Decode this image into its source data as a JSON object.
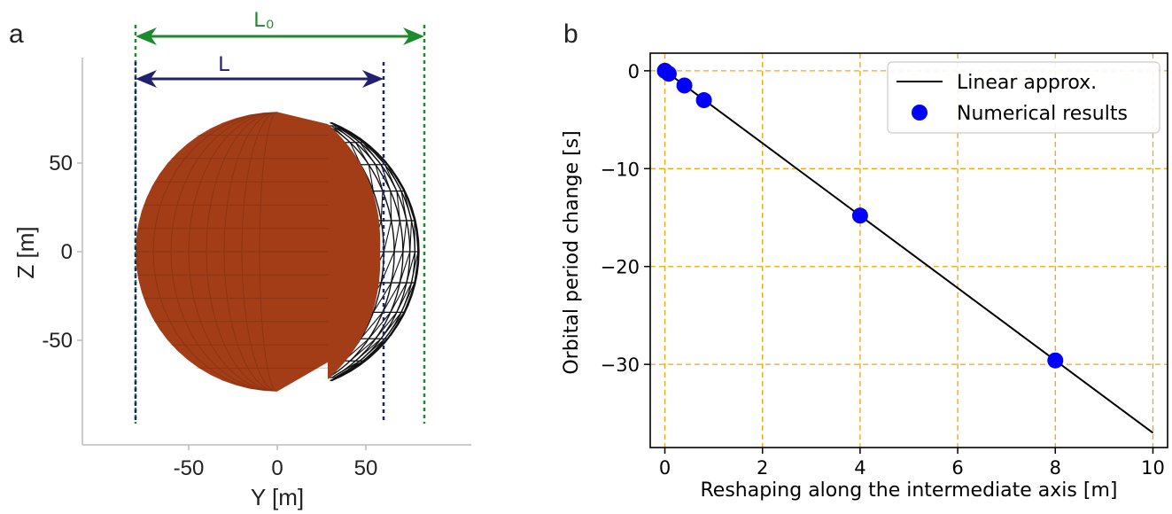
{
  "figure": {
    "colors": {
      "sphere_fill": "#a33d17",
      "wire": "#111111",
      "L0_arrow": "#1e8a2e",
      "L_arrow": "#23206e",
      "grid": "#f5a30f",
      "line": "#000000",
      "points": "#0000ff"
    }
  },
  "chart_data": [
    {
      "panel": "a",
      "type": "scatter",
      "xlabel": "Y [m]",
      "ylabel": "Z [m]",
      "xticks": [
        "-50",
        "0",
        "50"
      ],
      "yticks": [
        "50",
        "0",
        "-50"
      ],
      "xtick_values": [
        -50,
        0,
        50
      ],
      "ytick_values": [
        50,
        0,
        -50
      ],
      "xlim": [
        -88,
        88
      ],
      "ylim": [
        -88,
        88
      ],
      "annotations": {
        "L0": "L₀",
        "L": "L"
      },
      "body": {
        "sphere_radius": 80,
        "wireframe_right_edge": 80,
        "reshaped_right_edge": 58,
        "wireframe_cut_start": 29
      },
      "dims": {
        "L0": {
          "from": -80,
          "to": 83
        },
        "L": {
          "from": -80,
          "to": 60
        }
      }
    },
    {
      "panel": "b",
      "type": "line",
      "xlabel": "Reshaping along the intermediate axis [m]",
      "ylabel": "Orbital period change [s]",
      "xticks": [
        "0",
        "2",
        "4",
        "6",
        "8",
        "10"
      ],
      "yticks": [
        "0",
        "−10",
        "−20",
        "−30"
      ],
      "xtick_values": [
        0,
        2,
        4,
        6,
        8,
        10
      ],
      "ytick_values": [
        0,
        -10,
        -20,
        -30
      ],
      "xlim": [
        -0.3,
        10.3
      ],
      "ylim": [
        -38.5,
        1.8
      ],
      "grid": true,
      "legend_position": "top-right",
      "series": [
        {
          "name": "Linear approx.",
          "type": "line",
          "x": [
            0,
            10
          ],
          "y": [
            0,
            -37
          ]
        },
        {
          "name": "Numerical results",
          "type": "scatter",
          "x": [
            0,
            0.08,
            0.4,
            0.8,
            4,
            8
          ],
          "y": [
            0,
            -0.3,
            -1.5,
            -3.0,
            -14.8,
            -29.6
          ]
        }
      ]
    }
  ],
  "panel_labels": {
    "a": "a",
    "b": "b"
  }
}
